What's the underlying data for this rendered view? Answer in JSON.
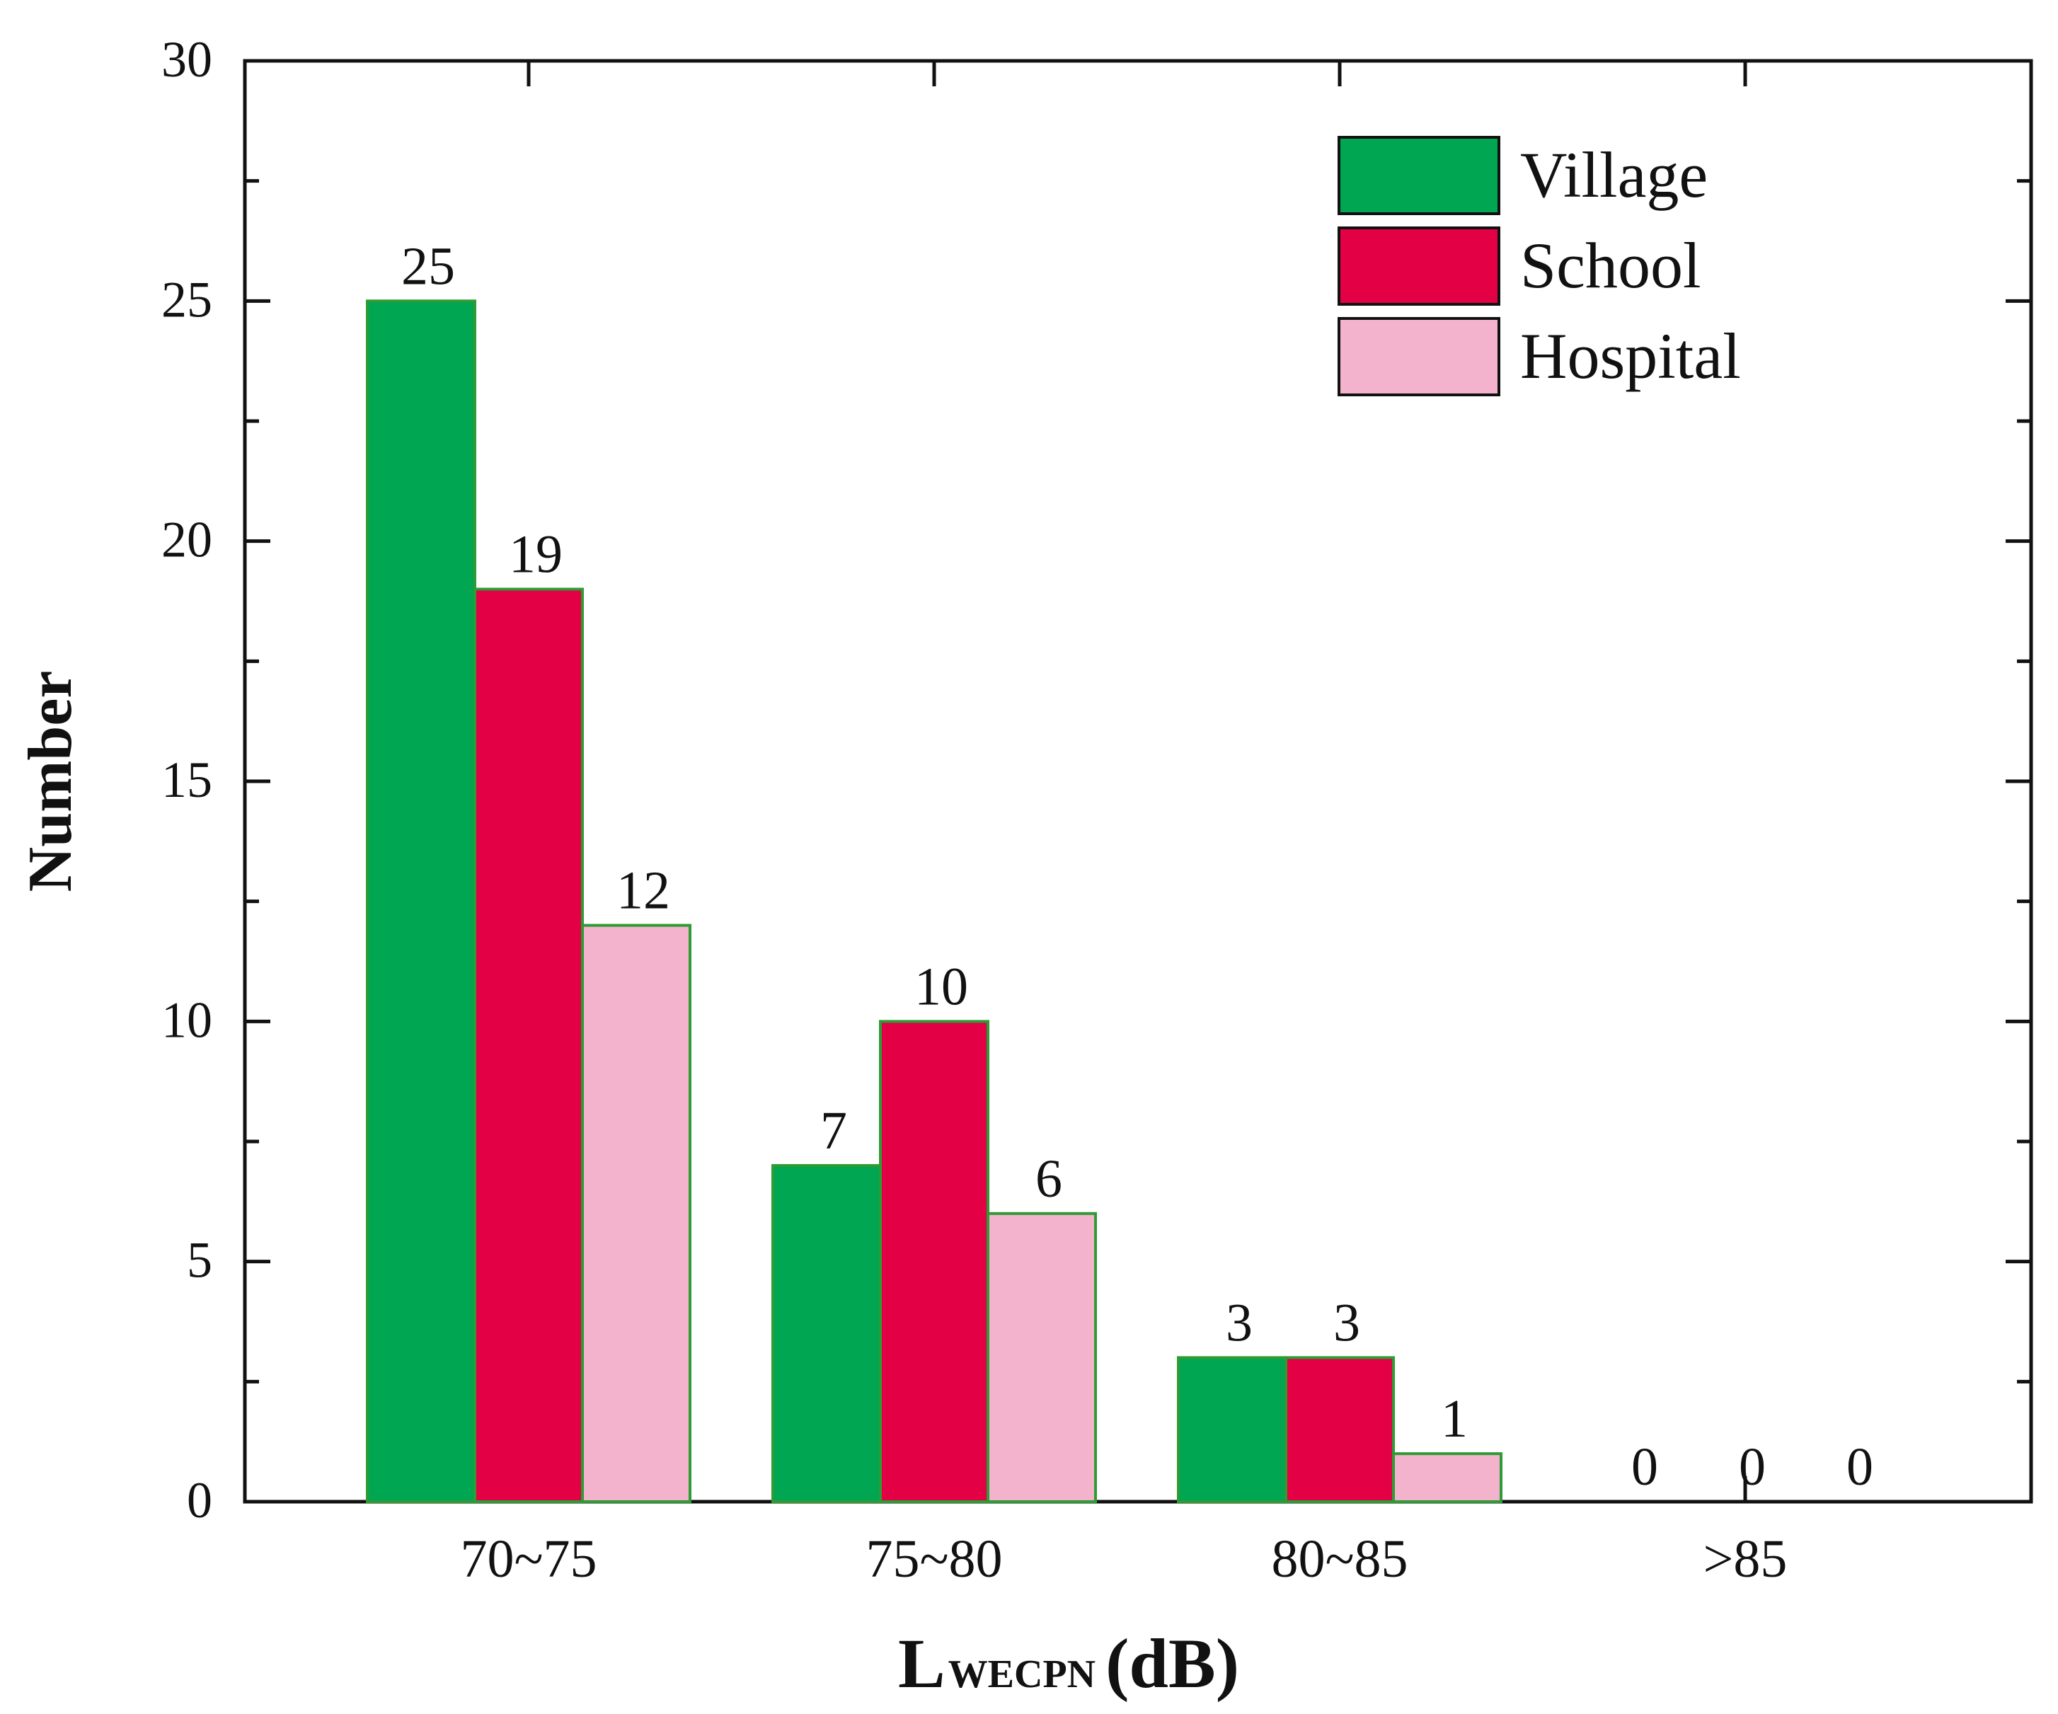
{
  "chart_data": {
    "type": "bar",
    "title": "",
    "categories": [
      "70~75",
      "75~80",
      "80~85",
      ">85"
    ],
    "series": [
      {
        "name": "Village",
        "values": [
          25,
          7,
          3,
          0
        ],
        "color": "#00a651"
      },
      {
        "name": "School",
        "values": [
          19,
          10,
          3,
          0
        ],
        "color": "#e30045"
      },
      {
        "name": "Hospital",
        "values": [
          12,
          6,
          1,
          0
        ],
        "color": "#f4b3cd"
      }
    ],
    "xlabel": {
      "main": "L",
      "subscript": "WECPN",
      "unit": "(dB)"
    },
    "ylabel": "Number",
    "ylim": [
      0,
      30
    ],
    "yticks": [
      0,
      5,
      10,
      15,
      20,
      25,
      30
    ],
    "bar_outline_color": "#2e9b34",
    "legend_position": "top-right",
    "grid": false
  }
}
